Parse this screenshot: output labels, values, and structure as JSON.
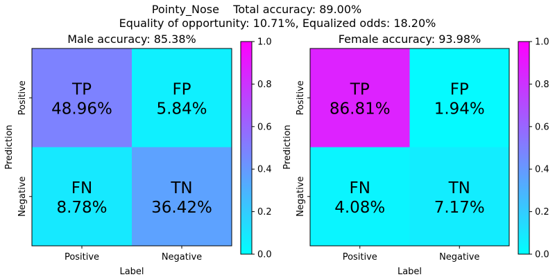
{
  "header": {
    "line1": "Pointy_Nose    Total accuracy: 89.00%",
    "line2": "Equality of opportunity: 10.71%, Equalized odds: 18.20%"
  },
  "chart_data": [
    {
      "type": "heatmap",
      "title": "Male accuracy: 85.38%",
      "xlabel": "Label",
      "ylabel": "Prediction",
      "x_categories": [
        "Positive",
        "Negative"
      ],
      "y_categories": [
        "Positive",
        "Negative"
      ],
      "cells": [
        {
          "code": "TP",
          "label": "48.96%",
          "value": 0.4896,
          "row": 0,
          "col": 0
        },
        {
          "code": "FP",
          "label": "5.84%",
          "value": 0.0584,
          "row": 0,
          "col": 1
        },
        {
          "code": "FN",
          "label": "8.78%",
          "value": 0.0878,
          "row": 1,
          "col": 0
        },
        {
          "code": "TN",
          "label": "36.42%",
          "value": 0.3642,
          "row": 1,
          "col": 1
        }
      ],
      "colormap": "cool",
      "colorbar": {
        "range": [
          0,
          1
        ],
        "ticks": [
          "0.0",
          "0.2",
          "0.4",
          "0.6",
          "0.8",
          "1.0"
        ]
      }
    },
    {
      "type": "heatmap",
      "title": "Female accuracy: 93.98%",
      "xlabel": "Label",
      "ylabel": "Prediction",
      "x_categories": [
        "Positive",
        "Negative"
      ],
      "y_categories": [
        "Positive",
        "Negative"
      ],
      "cells": [
        {
          "code": "TP",
          "label": "86.81%",
          "value": 0.8681,
          "row": 0,
          "col": 0
        },
        {
          "code": "FP",
          "label": "1.94%",
          "value": 0.0194,
          "row": 0,
          "col": 1
        },
        {
          "code": "FN",
          "label": "4.08%",
          "value": 0.0408,
          "row": 1,
          "col": 0
        },
        {
          "code": "TN",
          "label": "7.17%",
          "value": 0.0717,
          "row": 1,
          "col": 1
        }
      ],
      "colormap": "cool",
      "colorbar": {
        "range": [
          0,
          1
        ],
        "ticks": [
          "0.0",
          "0.2",
          "0.4",
          "0.6",
          "0.8",
          "1.0"
        ]
      }
    }
  ]
}
